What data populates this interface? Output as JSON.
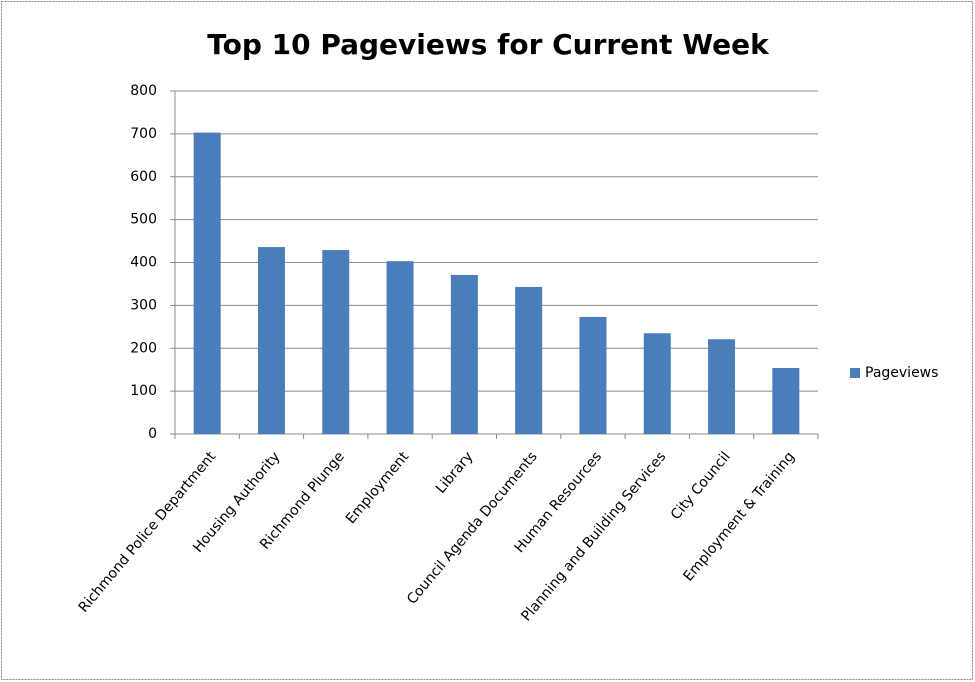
{
  "chart_data": {
    "type": "bar",
    "title": "Top 10 Pageviews for Current Week",
    "categories": [
      "Richmond Police Department",
      "Housing Authority",
      "Richmond Plunge",
      "Employment",
      "Library",
      "Council Agenda Documents",
      "Human Resources",
      "Planning and Building Services",
      "City Council",
      "Employment & Training"
    ],
    "series": [
      {
        "name": "Pageviews",
        "color": "#4a7ebb",
        "values": [
          703,
          436,
          429,
          403,
          371,
          343,
          273,
          235,
          221,
          154
        ]
      }
    ],
    "ylim": [
      0,
      800
    ],
    "yticks": [
      0,
      100,
      200,
      300,
      400,
      500,
      600,
      700,
      800
    ],
    "grid": true,
    "legend": "right"
  }
}
